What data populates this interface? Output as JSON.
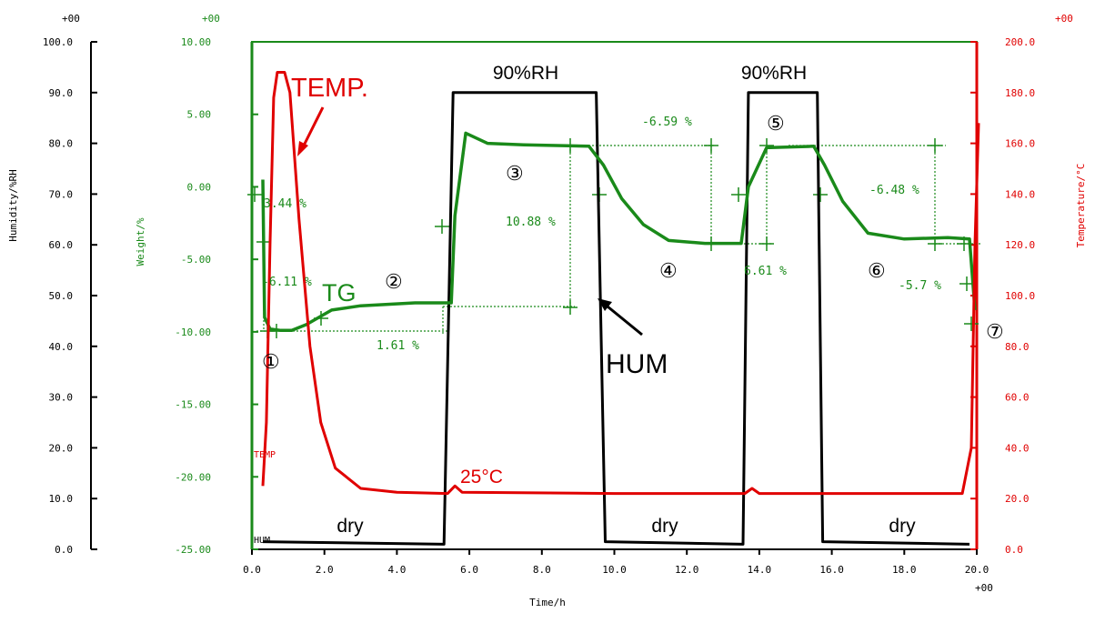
{
  "chart_data": {
    "type": "line",
    "x_axis": {
      "label": "Time/h",
      "exponent": "+00",
      "range": [
        0,
        20
      ],
      "ticks": [
        0,
        2,
        4,
        6,
        8,
        10,
        12,
        14,
        16,
        18,
        20
      ],
      "tick_labels": [
        "0.0",
        "2.0",
        "4.0",
        "6.0",
        "8.0",
        "10.0",
        "12.0",
        "14.0",
        "16.0",
        "18.0",
        "20.0"
      ]
    },
    "y_axes": {
      "humidity": {
        "label": "Humidity/%RH",
        "exponent": "+00",
        "range": [
          0,
          100
        ],
        "ticks": [
          0,
          10,
          20,
          30,
          40,
          50,
          60,
          70,
          80,
          90,
          100
        ],
        "tick_labels": [
          "0.0",
          "10.0",
          "20.0",
          "30.0",
          "40.0",
          "50.0",
          "60.0",
          "70.0",
          "80.0",
          "90.0",
          "100.0"
        ],
        "color": "#000000"
      },
      "weight": {
        "label": "Weight/%",
        "exponent": "+00",
        "range": [
          -25,
          10
        ],
        "ticks": [
          -25,
          -20,
          -15,
          -10,
          -5,
          0,
          5,
          10
        ],
        "tick_labels": [
          "-25.00",
          "-20.00",
          "-15.00",
          "-10.00",
          "-5.00",
          "0.00",
          "5.00",
          "10.00"
        ],
        "color": "#1a8a1a"
      },
      "temperature": {
        "label": "Temperature/°C",
        "exponent": "+00",
        "range": [
          0,
          200
        ],
        "ticks": [
          0,
          20,
          40,
          60,
          80,
          100,
          120,
          140,
          160,
          180,
          200
        ],
        "tick_labels": [
          "0.0",
          "20.0",
          "40.0",
          "60.0",
          "80.0",
          "100.0",
          "120.0",
          "140.0",
          "160.0",
          "180.0",
          "200.0"
        ],
        "color": "#e00000"
      }
    },
    "series": [
      {
        "name": "HUM",
        "axis": "humidity",
        "color": "#000000",
        "points": [
          [
            0.3,
            1.5
          ],
          [
            5.3,
            1.0
          ],
          [
            5.55,
            90
          ],
          [
            9.5,
            90
          ],
          [
            9.75,
            1.5
          ],
          [
            13.55,
            1.0
          ],
          [
            13.7,
            90
          ],
          [
            15.6,
            90
          ],
          [
            15.75,
            1.5
          ],
          [
            19.8,
            1.0
          ]
        ]
      },
      {
        "name": "TG",
        "axis": "weight",
        "color": "#1a8a1a",
        "points": [
          [
            0.3,
            0.5
          ],
          [
            0.35,
            -9.0
          ],
          [
            0.5,
            -9.8
          ],
          [
            0.8,
            -9.9
          ],
          [
            1.1,
            -9.9
          ],
          [
            1.5,
            -9.5
          ],
          [
            2.2,
            -8.5
          ],
          [
            3.0,
            -8.2
          ],
          [
            4.5,
            -8.0
          ],
          [
            5.5,
            -8.0
          ],
          [
            5.6,
            -2.0
          ],
          [
            5.9,
            3.7
          ],
          [
            6.5,
            3.0
          ],
          [
            7.5,
            2.9
          ],
          [
            9.3,
            2.8
          ],
          [
            9.7,
            1.5
          ],
          [
            10.2,
            -0.8
          ],
          [
            10.8,
            -2.6
          ],
          [
            11.5,
            -3.7
          ],
          [
            12.5,
            -3.9
          ],
          [
            13.5,
            -3.9
          ],
          [
            13.7,
            0.0
          ],
          [
            14.2,
            2.7
          ],
          [
            15.5,
            2.8
          ],
          [
            15.8,
            1.5
          ],
          [
            16.3,
            -1.0
          ],
          [
            17.0,
            -3.2
          ],
          [
            18.0,
            -3.6
          ],
          [
            19.2,
            -3.5
          ],
          [
            19.8,
            -3.6
          ],
          [
            19.95,
            -8.5
          ]
        ]
      },
      {
        "name": "TEMP",
        "axis": "temperature",
        "color": "#e00000",
        "points": [
          [
            0.3,
            25
          ],
          [
            0.4,
            50
          ],
          [
            0.5,
            120
          ],
          [
            0.6,
            178
          ],
          [
            0.7,
            188
          ],
          [
            0.9,
            188
          ],
          [
            1.05,
            180
          ],
          [
            1.3,
            130
          ],
          [
            1.6,
            80
          ],
          [
            1.9,
            50
          ],
          [
            2.3,
            32
          ],
          [
            3.0,
            24
          ],
          [
            4.0,
            22.5
          ],
          [
            5.4,
            22
          ],
          [
            5.6,
            25
          ],
          [
            5.8,
            22.5
          ],
          [
            10.0,
            22
          ],
          [
            13.6,
            22
          ],
          [
            13.8,
            24
          ],
          [
            14.0,
            22
          ],
          [
            19.6,
            22
          ],
          [
            19.85,
            40
          ],
          [
            19.95,
            120
          ],
          [
            20.05,
            168
          ]
        ]
      }
    ],
    "series_labels": {
      "temp": "TEMP.",
      "tg": "TG",
      "hum": "HUM",
      "temp_axis_tag": "TEMP",
      "hum_axis_tag": "HUM",
      "temp_25": "25°C"
    },
    "annotations": {
      "rh_90_a": "90%RH",
      "rh_90_b": "90%RH",
      "dry_1": "dry",
      "dry_2": "dry",
      "dry_3": "dry",
      "marker_1": "①",
      "marker_2": "②",
      "marker_3": "③",
      "marker_4": "④",
      "marker_5": "⑤",
      "marker_6": "⑥",
      "marker_7": "⑦",
      "step_1": "3.44 %",
      "step_2": "-6.11 %",
      "step_3": "1.61 %",
      "step_4": "10.88 %",
      "step_5": "-6.59 %",
      "step_6": "6.61 %",
      "step_7": "-6.48 %",
      "step_8": "-5.7 %"
    }
  }
}
